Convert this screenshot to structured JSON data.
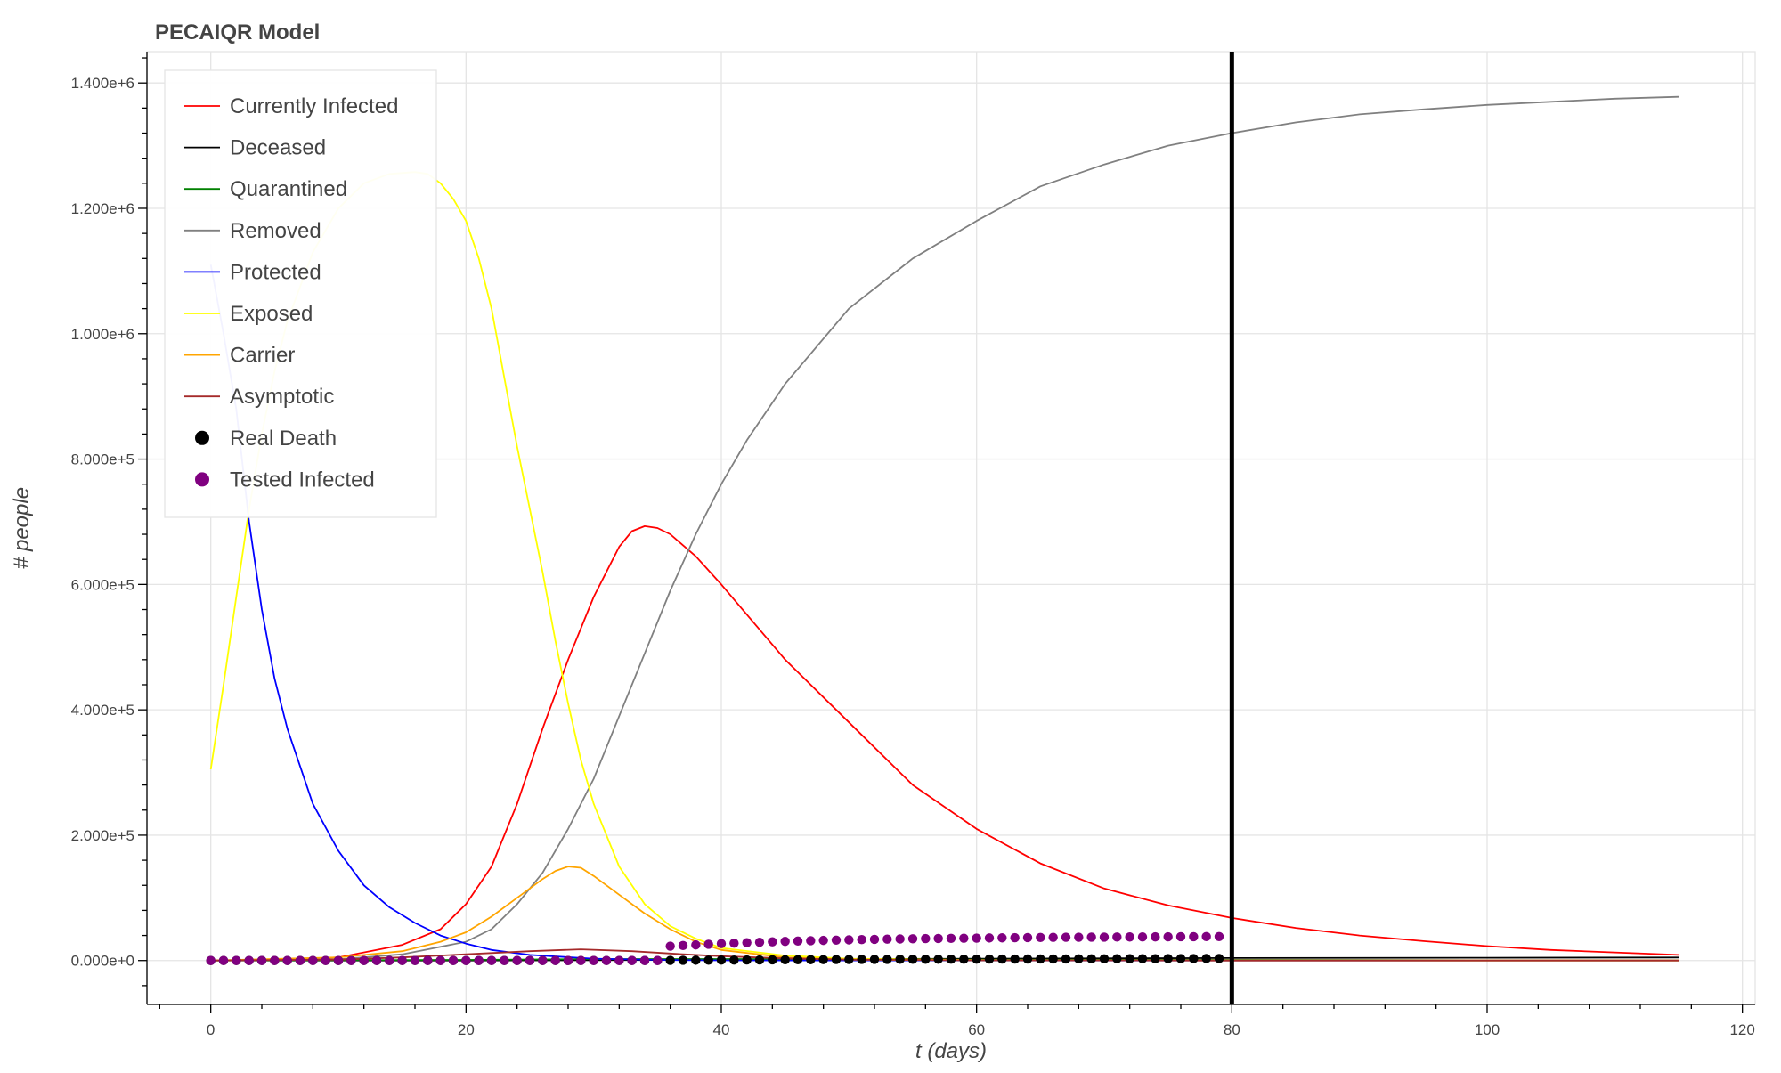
{
  "chart_data": {
    "type": "line",
    "title": "PECAIQR Model",
    "xlabel": "t (days)",
    "ylabel": "# people",
    "xlim": [
      -5,
      121
    ],
    "ylim": [
      -70000,
      1450000
    ],
    "x_ticks": [
      0,
      20,
      40,
      60,
      80,
      100,
      120
    ],
    "x_tick_labels": [
      "0",
      "20",
      "40",
      "60",
      "80",
      "100",
      "120"
    ],
    "y_ticks": [
      0,
      200000,
      400000,
      600000,
      800000,
      1000000,
      1200000,
      1400000
    ],
    "y_tick_labels": [
      "0.000e+0",
      "2.000e+5",
      "4.000e+5",
      "6.000e+5",
      "8.000e+5",
      "1.000e+6",
      "1.200e+6",
      "1.400e+6"
    ],
    "grid": true,
    "legend_position": "top-left",
    "vertical_line": {
      "x": 80,
      "color": "#000000"
    },
    "series": [
      {
        "name": "Currently Infected",
        "color": "#ff0000",
        "kind": "line",
        "x": [
          0,
          5,
          10,
          15,
          18,
          20,
          22,
          24,
          26,
          28,
          30,
          32,
          33,
          34,
          35,
          36,
          38,
          40,
          45,
          50,
          55,
          60,
          65,
          70,
          75,
          80,
          85,
          90,
          95,
          100,
          105,
          110,
          115
        ],
        "y": [
          0,
          1000,
          5000,
          25000,
          50000,
          90000,
          150000,
          250000,
          370000,
          480000,
          580000,
          660000,
          685000,
          693000,
          690000,
          680000,
          645000,
          600000,
          480000,
          380000,
          280000,
          210000,
          155000,
          115000,
          88000,
          68000,
          52000,
          40000,
          31000,
          23000,
          17000,
          13000,
          9000
        ]
      },
      {
        "name": "Deceased",
        "color": "#000000",
        "kind": "line",
        "x": [
          0,
          20,
          30,
          40,
          60,
          80,
          100,
          115
        ],
        "y": [
          0,
          0,
          500,
          1500,
          3000,
          4000,
          4500,
          4800
        ]
      },
      {
        "name": "Quarantined",
        "color": "#008000",
        "kind": "line",
        "x": [
          0,
          20,
          30,
          40,
          60,
          80,
          100,
          115
        ],
        "y": [
          0,
          1000,
          2500,
          2500,
          1500,
          1000,
          500,
          300
        ]
      },
      {
        "name": "Removed",
        "color": "#808080",
        "kind": "line",
        "x": [
          0,
          10,
          15,
          20,
          22,
          24,
          26,
          28,
          30,
          32,
          34,
          36,
          38,
          40,
          42,
          45,
          50,
          55,
          60,
          65,
          70,
          75,
          80,
          85,
          90,
          95,
          100,
          105,
          110,
          115
        ],
        "y": [
          0,
          2000,
          10000,
          30000,
          50000,
          90000,
          140000,
          210000,
          290000,
          390000,
          490000,
          590000,
          680000,
          760000,
          830000,
          920000,
          1040000,
          1120000,
          1180000,
          1235000,
          1270000,
          1300000,
          1320000,
          1337000,
          1350000,
          1358000,
          1365000,
          1370000,
          1375000,
          1378000
        ]
      },
      {
        "name": "Protected",
        "color": "#0000ff",
        "kind": "line",
        "x": [
          0,
          1,
          2,
          3,
          4,
          5,
          6,
          8,
          10,
          12,
          14,
          16,
          18,
          20,
          22,
          25,
          30,
          35,
          40,
          60,
          80,
          100,
          115
        ],
        "y": [
          1110000,
          1000000,
          880000,
          700000,
          560000,
          450000,
          370000,
          250000,
          175000,
          120000,
          85000,
          60000,
          40000,
          27000,
          17000,
          9000,
          3000,
          1000,
          300,
          100,
          50,
          20,
          10
        ]
      },
      {
        "name": "Exposed",
        "color": "#ffff00",
        "kind": "line",
        "x": [
          0,
          1,
          2,
          3,
          4,
          5,
          6,
          8,
          10,
          12,
          14,
          16,
          17,
          18,
          19,
          20,
          21,
          22,
          23,
          24,
          25,
          26,
          27,
          28,
          29,
          30,
          32,
          34,
          36,
          38,
          40,
          45,
          50,
          60,
          80,
          100,
          115
        ],
        "y": [
          305000,
          440000,
          580000,
          720000,
          840000,
          940000,
          1020000,
          1130000,
          1200000,
          1240000,
          1255000,
          1258000,
          1255000,
          1240000,
          1215000,
          1180000,
          1120000,
          1040000,
          930000,
          820000,
          720000,
          620000,
          510000,
          410000,
          320000,
          250000,
          150000,
          90000,
          55000,
          35000,
          20000,
          8000,
          3000,
          800,
          200,
          50,
          20
        ]
      },
      {
        "name": "Carrier",
        "color": "#ffa500",
        "kind": "line",
        "x": [
          0,
          10,
          15,
          18,
          20,
          22,
          24,
          26,
          27,
          28,
          29,
          30,
          32,
          34,
          36,
          38,
          40,
          45,
          50,
          60,
          80,
          115
        ],
        "y": [
          0,
          5000,
          15000,
          30000,
          45000,
          70000,
          100000,
          130000,
          143000,
          150000,
          148000,
          135000,
          105000,
          75000,
          50000,
          30000,
          17000,
          5000,
          1500,
          300,
          50,
          10
        ]
      },
      {
        "name": "Asymptotic",
        "color": "#a52a2a",
        "kind": "line",
        "x": [
          0,
          10,
          15,
          20,
          25,
          29,
          33,
          37,
          40,
          45,
          50,
          60,
          80,
          115
        ],
        "y": [
          0,
          1500,
          5000,
          10000,
          15000,
          18000,
          15000,
          10000,
          7000,
          3500,
          1500,
          500,
          100,
          20
        ]
      },
      {
        "name": "Real Death",
        "color": "#000000",
        "kind": "scatter",
        "x": [
          0,
          1,
          2,
          3,
          4,
          5,
          6,
          7,
          8,
          9,
          10,
          11,
          12,
          13,
          14,
          15,
          16,
          17,
          18,
          19,
          20,
          21,
          22,
          23,
          24,
          25,
          26,
          27,
          28,
          29,
          30,
          31,
          32,
          33,
          34,
          35,
          36,
          37,
          38,
          39,
          40,
          41,
          42,
          43,
          44,
          45,
          46,
          47,
          48,
          49,
          50,
          51,
          52,
          53,
          54,
          55,
          56,
          57,
          58,
          59,
          60,
          61,
          62,
          63,
          64,
          65,
          66,
          67,
          68,
          69,
          70,
          71,
          72,
          73,
          74,
          75,
          76,
          77,
          78,
          79
        ],
        "y": [
          0,
          0,
          0,
          0,
          0,
          0,
          0,
          0,
          0,
          0,
          0,
          0,
          0,
          0,
          0,
          0,
          0,
          0,
          0,
          0,
          0,
          0,
          0,
          0,
          0,
          0,
          0,
          0,
          0,
          0,
          0,
          0,
          0,
          0,
          0,
          0,
          300,
          400,
          500,
          600,
          700,
          800,
          900,
          1000,
          1100,
          1200,
          1300,
          1400,
          1500,
          1600,
          1700,
          1800,
          1850,
          1900,
          1950,
          2000,
          2050,
          2100,
          2150,
          2200,
          2250,
          2300,
          2350,
          2400,
          2450,
          2500,
          2550,
          2600,
          2650,
          2700,
          2750,
          2800,
          2850,
          2900,
          2950,
          3000,
          3050,
          3100,
          3150,
          3200
        ]
      },
      {
        "name": "Tested Infected",
        "color": "#800080",
        "kind": "scatter",
        "x": [
          0,
          1,
          2,
          3,
          4,
          5,
          6,
          7,
          8,
          9,
          10,
          11,
          12,
          13,
          14,
          15,
          16,
          17,
          18,
          19,
          20,
          21,
          22,
          23,
          24,
          25,
          26,
          27,
          28,
          29,
          30,
          31,
          32,
          33,
          34,
          35,
          36,
          37,
          38,
          39,
          40,
          41,
          42,
          43,
          44,
          45,
          46,
          47,
          48,
          49,
          50,
          51,
          52,
          53,
          54,
          55,
          56,
          57,
          58,
          59,
          60,
          61,
          62,
          63,
          64,
          65,
          66,
          67,
          68,
          69,
          70,
          71,
          72,
          73,
          74,
          75,
          76,
          77,
          78,
          79
        ],
        "y": [
          0,
          0,
          0,
          0,
          0,
          0,
          0,
          0,
          0,
          0,
          0,
          0,
          0,
          0,
          0,
          0,
          0,
          0,
          0,
          0,
          0,
          0,
          0,
          0,
          0,
          0,
          0,
          0,
          0,
          0,
          0,
          0,
          0,
          0,
          0,
          0,
          23000,
          24000,
          25000,
          26000,
          27000,
          27800,
          28500,
          29200,
          29900,
          30500,
          31100,
          31600,
          32100,
          32600,
          33000,
          33400,
          33800,
          34100,
          34400,
          34700,
          35000,
          35200,
          35400,
          35600,
          35800,
          36000,
          36200,
          36400,
          36600,
          36800,
          37000,
          37100,
          37200,
          37300,
          37400,
          37500,
          37600,
          37700,
          37800,
          37900,
          38000,
          38100,
          38200,
          38300
        ]
      }
    ]
  }
}
